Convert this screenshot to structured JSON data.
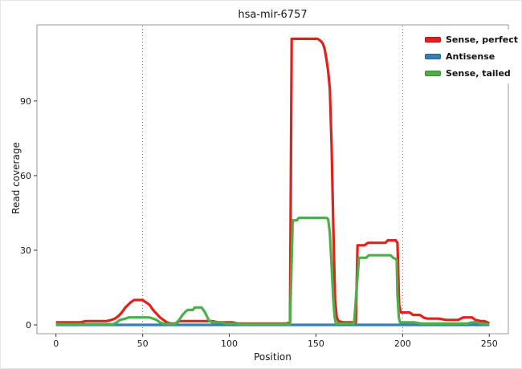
{
  "chart_data": {
    "type": "line",
    "title": "hsa-mir-6757",
    "xlabel": "Position",
    "ylabel": "Read coverage",
    "xlim": [
      -11,
      261
    ],
    "ylim": [
      -3.55,
      120.6
    ],
    "x_ticks": [
      0,
      50,
      100,
      150,
      200,
      250
    ],
    "y_ticks": [
      0,
      30,
      60,
      90
    ],
    "gridlines_x": [
      50,
      200
    ],
    "grid_style": "dotted-vertical",
    "legend_position": "top-right",
    "panel_border_color": "#9a9a9a",
    "series": [
      {
        "name": "Sense, perfect",
        "color": "#e2201c",
        "points": [
          [
            0,
            1
          ],
          [
            14,
            1
          ],
          [
            17,
            1.5
          ],
          [
            29,
            1.5
          ],
          [
            32,
            2
          ],
          [
            34,
            2.5
          ],
          [
            36,
            3.5
          ],
          [
            38,
            5
          ],
          [
            40,
            7
          ],
          [
            43,
            9
          ],
          [
            45,
            10
          ],
          [
            50,
            10
          ],
          [
            52,
            9
          ],
          [
            54,
            8
          ],
          [
            56,
            6
          ],
          [
            58,
            4.5
          ],
          [
            60,
            3
          ],
          [
            62,
            2
          ],
          [
            64,
            1
          ],
          [
            66,
            0.5
          ],
          [
            69,
            0.5
          ],
          [
            71,
            1.5
          ],
          [
            90,
            1.5
          ],
          [
            94,
            1
          ],
          [
            102,
            1
          ],
          [
            105,
            0.5
          ],
          [
            133,
            0.5
          ],
          [
            135,
            1
          ],
          [
            136,
            115
          ],
          [
            151,
            115
          ],
          [
            153,
            114
          ],
          [
            154,
            113
          ],
          [
            155,
            111
          ],
          [
            156,
            107
          ],
          [
            157,
            102
          ],
          [
            158,
            95
          ],
          [
            159,
            72
          ],
          [
            160,
            40
          ],
          [
            161,
            10
          ],
          [
            162,
            3
          ],
          [
            163,
            1.5
          ],
          [
            166,
            1
          ],
          [
            173,
            1
          ],
          [
            174,
            32
          ],
          [
            178,
            32
          ],
          [
            180,
            33
          ],
          [
            190,
            33
          ],
          [
            191.5,
            34
          ],
          [
            196,
            34
          ],
          [
            197,
            33
          ],
          [
            197.5,
            20
          ],
          [
            198,
            8
          ],
          [
            199,
            5
          ],
          [
            204,
            5
          ],
          [
            206,
            4
          ],
          [
            210,
            4
          ],
          [
            212,
            3
          ],
          [
            214,
            2.5
          ],
          [
            221,
            2.5
          ],
          [
            225,
            2
          ],
          [
            232,
            2
          ],
          [
            235,
            3
          ],
          [
            240,
            3
          ],
          [
            242,
            2
          ],
          [
            245,
            1.5
          ],
          [
            247,
            1.5
          ],
          [
            249,
            1
          ],
          [
            250,
            0.5
          ]
        ]
      },
      {
        "name": "Antisense",
        "color": "#377eb8",
        "points": [
          [
            0,
            0
          ],
          [
            60,
            0
          ],
          [
            120,
            0
          ],
          [
            180,
            0
          ],
          [
            250,
            0
          ]
        ]
      },
      {
        "name": "Sense, tailed",
        "color": "#4daf4a",
        "points": [
          [
            0,
            0.3
          ],
          [
            33,
            0.3
          ],
          [
            35,
            1
          ],
          [
            37,
            2
          ],
          [
            40,
            2.5
          ],
          [
            42,
            3
          ],
          [
            54,
            3
          ],
          [
            56,
            2.5
          ],
          [
            58,
            2
          ],
          [
            60,
            1
          ],
          [
            62,
            0.5
          ],
          [
            67,
            0.3
          ],
          [
            69,
            0.5
          ],
          [
            71,
            2
          ],
          [
            73,
            4
          ],
          [
            75,
            5.5
          ],
          [
            76,
            6
          ],
          [
            79,
            6
          ],
          [
            80,
            7
          ],
          [
            84,
            7
          ],
          [
            85,
            6
          ],
          [
            86,
            5
          ],
          [
            87,
            3.5
          ],
          [
            88,
            2
          ],
          [
            90,
            1
          ],
          [
            96,
            1
          ],
          [
            98,
            0.5
          ],
          [
            103,
            0.5
          ],
          [
            106,
            0.3
          ],
          [
            133,
            0.3
          ],
          [
            135,
            0.3
          ],
          [
            136.6,
            42
          ],
          [
            139,
            42
          ],
          [
            140,
            43
          ],
          [
            156,
            43
          ],
          [
            157,
            42.5
          ],
          [
            158,
            37
          ],
          [
            159,
            24
          ],
          [
            160,
            10
          ],
          [
            160.8,
            3
          ],
          [
            161.5,
            0.5
          ],
          [
            172,
            0.5
          ],
          [
            174.8,
            27
          ],
          [
            179,
            27
          ],
          [
            180.5,
            28
          ],
          [
            193,
            28
          ],
          [
            194.5,
            27
          ],
          [
            196,
            26.5
          ],
          [
            196.6,
            26
          ],
          [
            197,
            12
          ],
          [
            197.8,
            3
          ],
          [
            198.5,
            1
          ],
          [
            207,
            1
          ],
          [
            211,
            0.5
          ],
          [
            237,
            0.5
          ],
          [
            240,
            1
          ],
          [
            243,
            1
          ],
          [
            245,
            0.5
          ],
          [
            250,
            0.3
          ]
        ]
      }
    ]
  }
}
